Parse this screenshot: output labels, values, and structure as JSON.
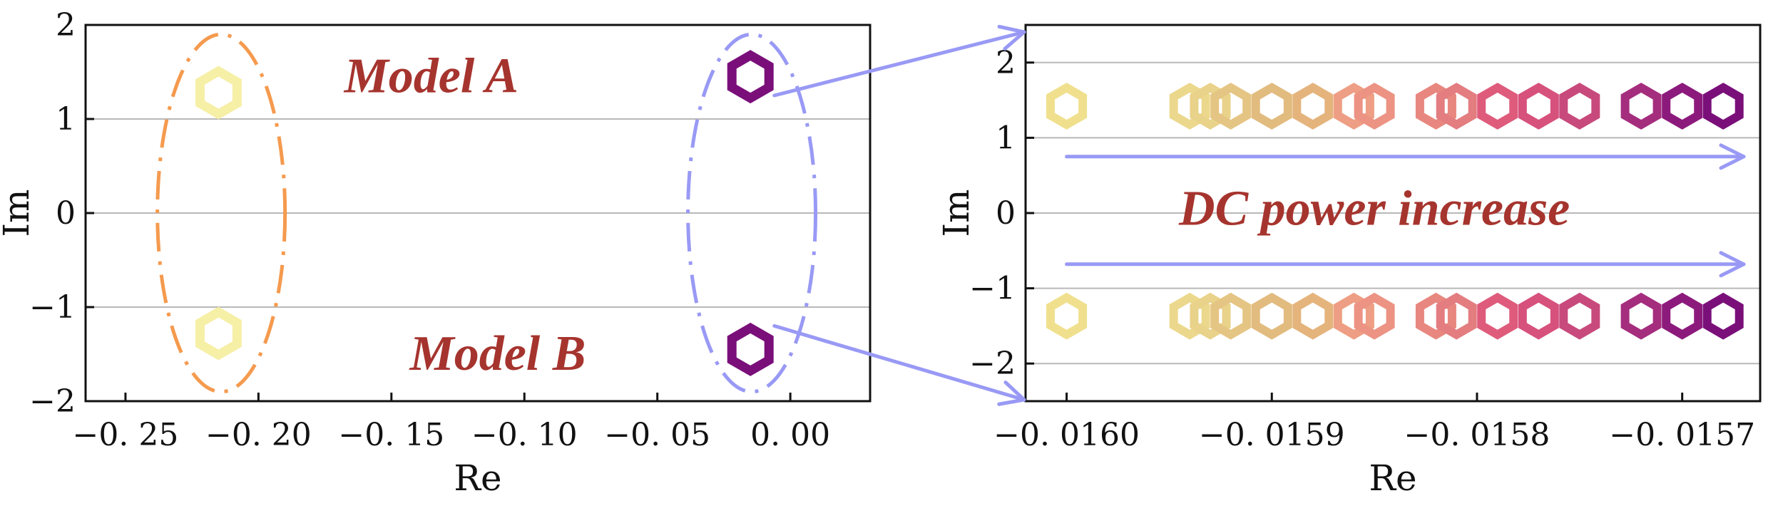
{
  "chart_data": [
    {
      "id": "left",
      "type": "scatter",
      "xlabel": "Re",
      "ylabel": "Im",
      "xlim": [
        -0.265,
        0.03
      ],
      "ylim": [
        -2,
        2
      ],
      "xticks": [
        -0.25,
        -0.2,
        -0.15,
        -0.1,
        -0.05,
        0.0
      ],
      "xtick_labels": [
        "−0. 25",
        "−0. 20",
        "−0. 15",
        "−0. 10",
        "−0. 05",
        "0. 00"
      ],
      "yticks": [
        -2,
        -1,
        0,
        1,
        2
      ],
      "ytick_labels": [
        "−2",
        "−1",
        "0",
        "1",
        "2"
      ],
      "grid": "horizontal",
      "marker": "hexagon",
      "series": [
        {
          "color": "#f6efa6",
          "points": [
            [
              -0.215,
              1.28
            ],
            [
              -0.215,
              -1.28
            ]
          ]
        },
        {
          "color": "#7a0f7a",
          "points": [
            [
              -0.015,
              1.45
            ],
            [
              -0.015,
              -1.45
            ]
          ]
        }
      ],
      "annotations": [
        {
          "text": "Model A",
          "x": -0.135,
          "y": 1.45
        },
        {
          "text": "Model B",
          "x": -0.11,
          "y": -1.5
        }
      ],
      "ellipses": [
        {
          "color": "#f59a4e",
          "cx": -0.214,
          "cy": 0,
          "rx": 0.024,
          "ry": 1.9
        },
        {
          "color": "#9999f5",
          "cx": -0.0145,
          "cy": 0,
          "rx": 0.024,
          "ry": 1.9
        }
      ]
    },
    {
      "id": "right",
      "type": "scatter",
      "xlabel": "Re",
      "ylabel": "Im",
      "xlim": [
        -0.01602,
        -0.015662
      ],
      "ylim": [
        -2.5,
        2.5
      ],
      "xticks": [
        -0.016,
        -0.0159,
        -0.0158,
        -0.0157
      ],
      "xtick_labels": [
        "−0. 0160",
        "−0. 0159",
        "−0. 0158",
        "−0. 0157"
      ],
      "yticks": [
        -2,
        -1,
        0,
        1,
        2
      ],
      "ytick_labels": [
        "−2",
        "−1",
        "0",
        "1",
        "2"
      ],
      "grid": "horizontal",
      "marker": "hexagon",
      "im_values": [
        1.42,
        -1.37
      ],
      "points": [
        {
          "re": -0.016,
          "color": "#f0e08e"
        },
        {
          "re": -0.01594,
          "color": "#ecd88c"
        },
        {
          "re": -0.01593,
          "color": "#e9d28a"
        },
        {
          "re": -0.01592,
          "color": "#e5c584"
        },
        {
          "re": -0.0159,
          "color": "#e2bb7f"
        },
        {
          "re": -0.01588,
          "color": "#e4b47c"
        },
        {
          "re": -0.01586,
          "color": "#ee9e84"
        },
        {
          "re": -0.01585,
          "color": "#ec9384"
        },
        {
          "re": -0.01582,
          "color": "#e8877f"
        },
        {
          "re": -0.01581,
          "color": "#e37d80"
        },
        {
          "re": -0.01579,
          "color": "#df5b7c"
        },
        {
          "re": -0.01577,
          "color": "#d7517d"
        },
        {
          "re": -0.01575,
          "color": "#c84a7c"
        },
        {
          "re": -0.01572,
          "color": "#a52d7e"
        },
        {
          "re": -0.0157,
          "color": "#8c1a7c"
        },
        {
          "re": -0.01568,
          "color": "#7a0f7a"
        }
      ],
      "annotations": [
        {
          "text": "DC power increase",
          "x": -0.01585,
          "y": 0.05
        }
      ],
      "arrows": [
        {
          "from": [
            -0.016,
            0.75
          ],
          "to": [
            -0.01567,
            0.75
          ]
        },
        {
          "from": [
            -0.016,
            -0.68
          ],
          "to": [
            -0.01567,
            -0.68
          ]
        }
      ]
    }
  ],
  "connectors": [
    {
      "from_panel": "left",
      "from": [
        -0.006,
        1.25
      ],
      "to": "right-top"
    },
    {
      "from_panel": "left",
      "from": [
        -0.006,
        -1.2
      ],
      "to": "right-bottom"
    }
  ],
  "colors": {
    "arrow": "#9999f5",
    "annotation": "#a6342e",
    "grid": "#b8b8b8"
  }
}
